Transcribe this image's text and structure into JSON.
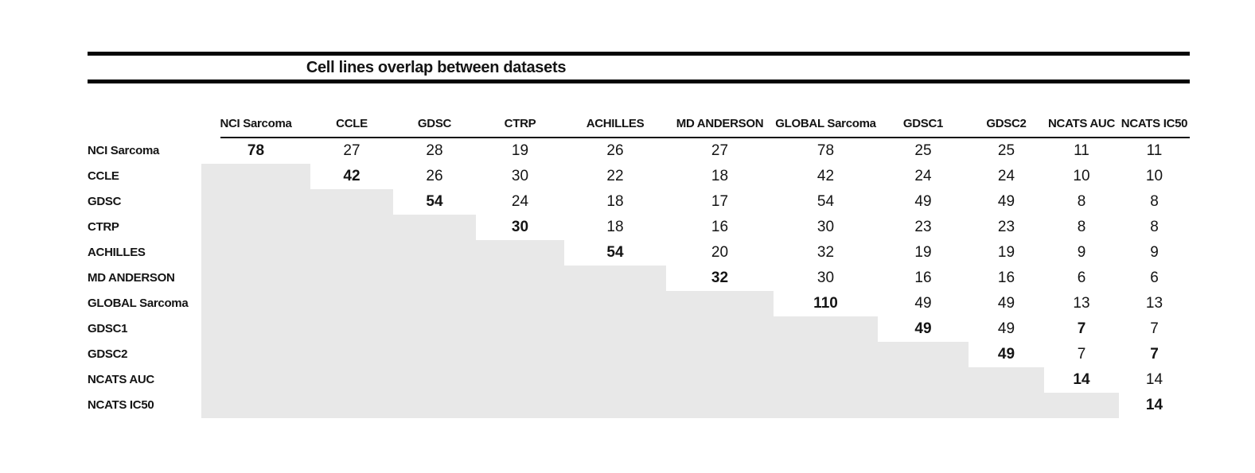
{
  "table": {
    "title": "Cell lines overlap between datasets",
    "columns": [
      "NCI Sarcoma",
      "CCLE",
      "GDSC",
      "CTRP",
      "ACHILLES",
      "MD ANDERSON",
      "GLOBAL Sarcoma",
      "GDSC1",
      "GDSC2",
      "NCATS AUC",
      "NCATS IC50"
    ],
    "rows": [
      {
        "label": "NCI Sarcoma",
        "cells": [
          {
            "v": "78",
            "bold": true
          },
          {
            "v": "27"
          },
          {
            "v": "28"
          },
          {
            "v": "19"
          },
          {
            "v": "26"
          },
          {
            "v": "27"
          },
          {
            "v": "78"
          },
          {
            "v": "25"
          },
          {
            "v": "25"
          },
          {
            "v": "11"
          },
          {
            "v": "11"
          }
        ]
      },
      {
        "label": "CCLE",
        "cells": [
          {
            "shaded": true
          },
          {
            "v": "42",
            "bold": true
          },
          {
            "v": "26"
          },
          {
            "v": "30"
          },
          {
            "v": "22"
          },
          {
            "v": "18"
          },
          {
            "v": "42"
          },
          {
            "v": "24"
          },
          {
            "v": "24"
          },
          {
            "v": "10"
          },
          {
            "v": "10"
          }
        ]
      },
      {
        "label": "GDSC",
        "cells": [
          {
            "shaded": true
          },
          {
            "shaded": true
          },
          {
            "v": "54",
            "bold": true
          },
          {
            "v": "24"
          },
          {
            "v": "18"
          },
          {
            "v": "17"
          },
          {
            "v": "54"
          },
          {
            "v": "49"
          },
          {
            "v": "49"
          },
          {
            "v": "8"
          },
          {
            "v": "8"
          }
        ]
      },
      {
        "label": "CTRP",
        "cells": [
          {
            "shaded": true
          },
          {
            "shaded": true
          },
          {
            "shaded": true
          },
          {
            "v": "30",
            "bold": true
          },
          {
            "v": "18"
          },
          {
            "v": "16"
          },
          {
            "v": "30"
          },
          {
            "v": "23"
          },
          {
            "v": "23"
          },
          {
            "v": "8"
          },
          {
            "v": "8"
          }
        ]
      },
      {
        "label": "ACHILLES",
        "cells": [
          {
            "shaded": true
          },
          {
            "shaded": true
          },
          {
            "shaded": true
          },
          {
            "shaded": true
          },
          {
            "v": "54",
            "bold": true
          },
          {
            "v": "20"
          },
          {
            "v": "32"
          },
          {
            "v": "19"
          },
          {
            "v": "19"
          },
          {
            "v": "9"
          },
          {
            "v": "9"
          }
        ]
      },
      {
        "label": "MD ANDERSON",
        "cells": [
          {
            "shaded": true
          },
          {
            "shaded": true
          },
          {
            "shaded": true
          },
          {
            "shaded": true
          },
          {
            "shaded": true
          },
          {
            "v": "32",
            "bold": true
          },
          {
            "v": "30"
          },
          {
            "v": "16"
          },
          {
            "v": "16"
          },
          {
            "v": "6"
          },
          {
            "v": "6"
          }
        ]
      },
      {
        "label": "GLOBAL Sarcoma",
        "cells": [
          {
            "shaded": true
          },
          {
            "shaded": true
          },
          {
            "shaded": true
          },
          {
            "shaded": true
          },
          {
            "shaded": true
          },
          {
            "shaded": true
          },
          {
            "v": "110",
            "bold": true
          },
          {
            "v": "49"
          },
          {
            "v": "49"
          },
          {
            "v": "13"
          },
          {
            "v": "13"
          }
        ]
      },
      {
        "label": "GDSC1",
        "cells": [
          {
            "shaded": true
          },
          {
            "shaded": true
          },
          {
            "shaded": true
          },
          {
            "shaded": true
          },
          {
            "shaded": true
          },
          {
            "shaded": true
          },
          {
            "shaded": true
          },
          {
            "v": "49",
            "bold": true
          },
          {
            "v": "49"
          },
          {
            "v": "7",
            "bold": true
          },
          {
            "v": "7"
          }
        ]
      },
      {
        "label": "GDSC2",
        "cells": [
          {
            "shaded": true
          },
          {
            "shaded": true
          },
          {
            "shaded": true
          },
          {
            "shaded": true
          },
          {
            "shaded": true
          },
          {
            "shaded": true
          },
          {
            "shaded": true
          },
          {
            "shaded": true
          },
          {
            "v": "49",
            "bold": true
          },
          {
            "v": "7"
          },
          {
            "v": "7",
            "bold": true
          }
        ]
      },
      {
        "label": "NCATS AUC",
        "cells": [
          {
            "shaded": true
          },
          {
            "shaded": true
          },
          {
            "shaded": true
          },
          {
            "shaded": true
          },
          {
            "shaded": true
          },
          {
            "shaded": true
          },
          {
            "shaded": true
          },
          {
            "shaded": true
          },
          {
            "shaded": true
          },
          {
            "v": "14",
            "bold": true
          },
          {
            "v": "14"
          }
        ]
      },
      {
        "label": "NCATS IC50",
        "cells": [
          {
            "shaded": true
          },
          {
            "shaded": true
          },
          {
            "shaded": true
          },
          {
            "shaded": true
          },
          {
            "shaded": true
          },
          {
            "shaded": true
          },
          {
            "shaded": true
          },
          {
            "shaded": true
          },
          {
            "shaded": true
          },
          {
            "shaded": true
          },
          {
            "v": "14",
            "bold": true
          }
        ]
      }
    ]
  },
  "chart_data": {
    "type": "table",
    "title": "Cell lines overlap between datasets",
    "columns": [
      "NCI Sarcoma",
      "CCLE",
      "GDSC",
      "CTRP",
      "ACHILLES",
      "MD ANDERSON",
      "GLOBAL Sarcoma",
      "GDSC1",
      "GDSC2",
      "NCATS AUC",
      "NCATS IC50"
    ],
    "rows": [
      "NCI Sarcoma",
      "CCLE",
      "GDSC",
      "CTRP",
      "ACHILLES",
      "MD ANDERSON",
      "GLOBAL Sarcoma",
      "GDSC1",
      "GDSC2",
      "NCATS AUC",
      "NCATS IC50"
    ],
    "upper_triangle_values": [
      [
        78,
        27,
        28,
        19,
        26,
        27,
        78,
        25,
        25,
        11,
        11
      ],
      [
        null,
        42,
        26,
        30,
        22,
        18,
        42,
        24,
        24,
        10,
        10
      ],
      [
        null,
        null,
        54,
        24,
        18,
        17,
        54,
        49,
        49,
        8,
        8
      ],
      [
        null,
        null,
        null,
        30,
        18,
        16,
        30,
        23,
        23,
        8,
        8
      ],
      [
        null,
        null,
        null,
        null,
        54,
        20,
        32,
        19,
        19,
        9,
        9
      ],
      [
        null,
        null,
        null,
        null,
        null,
        32,
        30,
        16,
        16,
        6,
        6
      ],
      [
        null,
        null,
        null,
        null,
        null,
        null,
        110,
        49,
        49,
        13,
        13
      ],
      [
        null,
        null,
        null,
        null,
        null,
        null,
        null,
        49,
        49,
        7,
        7
      ],
      [
        null,
        null,
        null,
        null,
        null,
        null,
        null,
        null,
        49,
        7,
        7
      ],
      [
        null,
        null,
        null,
        null,
        null,
        null,
        null,
        null,
        null,
        14,
        14
      ],
      [
        null,
        null,
        null,
        null,
        null,
        null,
        null,
        null,
        null,
        null,
        14
      ]
    ],
    "layout_hints": "Lower triangle shaded light gray; diagonal values bold; also bold: GDSC1/NCATS AUC = 7, GDSC2/NCATS IC50 = 7"
  },
  "colors": {
    "background": "#ffffff",
    "shade": "#e8e8e8",
    "rule": "#050505",
    "text": "#141414"
  }
}
